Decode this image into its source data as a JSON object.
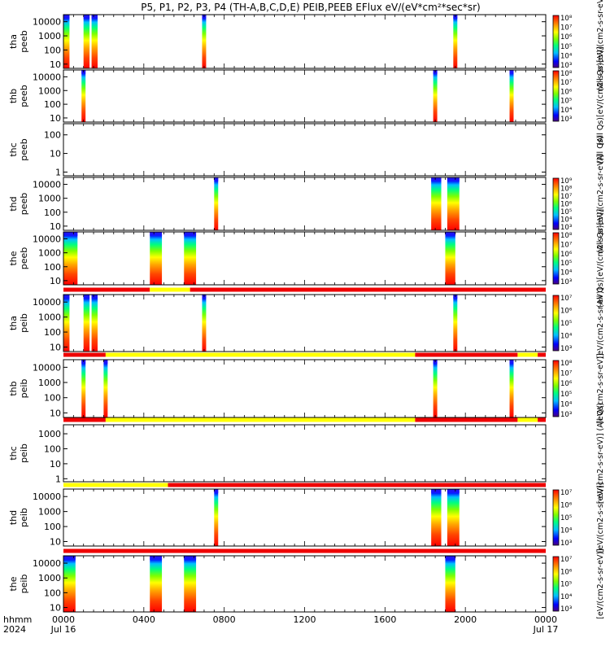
{
  "title": "P5, P1, P2, P3, P4 (TH-A,B,C,D,E) PEIB,PEEB EFlux eV/(eV*cm²*sec*sr)",
  "colors": {
    "flag_red": "#ee0000",
    "flag_yellow": "#ffff00",
    "spectrogram": [
      "#4b0082",
      "#0000ff",
      "#00bfff",
      "#00ff7f",
      "#7fff00",
      "#ffff00",
      "#ffa500",
      "#ff4500",
      "#ff0000"
    ]
  },
  "x_axis": {
    "row_label_1": "hhmm",
    "row_label_2": "2024",
    "ticks": [
      {
        "t": 0,
        "label": "0000",
        "date": "Jul 16"
      },
      {
        "t": 4,
        "label": "0400",
        "date": ""
      },
      {
        "t": 8,
        "label": "0800",
        "date": ""
      },
      {
        "t": 12,
        "label": "1200",
        "date": ""
      },
      {
        "t": 16,
        "label": "1600",
        "date": ""
      },
      {
        "t": 20,
        "label": "2000",
        "date": ""
      },
      {
        "t": 24,
        "label": "0000",
        "date": "Jul 17"
      }
    ],
    "range_hours": [
      0,
      24
    ]
  },
  "chart_data": {
    "type": "heatmap",
    "x_units": "hours since 2024-07-16 00:00",
    "panels": [
      {
        "id": "tha-peeb",
        "ylabel": [
          "tha",
          "peeb"
        ],
        "yticks": [
          "10000",
          "1000",
          "100",
          "10"
        ],
        "ylog": [
          0.7,
          4.5
        ],
        "colorbar": {
          "ticks": [
            "10⁸",
            "10⁷",
            "10⁶",
            "10⁵",
            "10⁴",
            "10³"
          ],
          "label": "(All Qs)[eV/(cm2-s-sr-eV)]"
        },
        "segments": [
          {
            "t0": 0.0,
            "t1": 0.3
          },
          {
            "t0": 1.0,
            "t1": 1.3
          },
          {
            "t0": 1.4,
            "t1": 1.7
          },
          {
            "t0": 6.9,
            "t1": 7.1
          },
          {
            "t0": 19.4,
            "t1": 19.6
          }
        ]
      },
      {
        "id": "thb-peeb",
        "ylabel": [
          "thb",
          "peeb"
        ],
        "yticks": [
          "10000",
          "1000",
          "100",
          "10"
        ],
        "ylog": [
          0.7,
          4.5
        ],
        "colorbar": {
          "ticks": [
            "10⁸",
            "10⁷",
            "10⁶",
            "10⁵",
            "10⁴",
            "10³"
          ],
          "label": "(All Qs)[eV/(cm2-s-sr-eV)]"
        },
        "segments": [
          {
            "t0": 0.9,
            "t1": 1.1
          },
          {
            "t0": 18.4,
            "t1": 18.6
          },
          {
            "t0": 22.2,
            "t1": 22.4
          }
        ]
      },
      {
        "id": "thc-peeb",
        "ylabel": [
          "thc",
          "peeb"
        ],
        "yticks": [
          "100",
          "10",
          "1"
        ],
        "ylog": [
          -0.2,
          2.6
        ],
        "colorbar": null,
        "segments": [],
        "side_label": "(All Qs)"
      },
      {
        "id": "thd-peeb",
        "ylabel": [
          "thd",
          "peeb"
        ],
        "yticks": [
          "10000",
          "1000",
          "100",
          "10"
        ],
        "ylog": [
          0.7,
          4.5
        ],
        "colorbar": {
          "ticks": [
            "10⁹",
            "10⁸",
            "10⁷",
            "10⁶",
            "10⁵",
            "10⁴",
            "10³"
          ],
          "label": "(All Qs)[eV/(cm2-s-sr-eV)]"
        },
        "segments": [
          {
            "t0": 7.5,
            "t1": 7.7
          },
          {
            "t0": 18.3,
            "t1": 18.8
          },
          {
            "t0": 19.1,
            "t1": 19.7
          }
        ]
      },
      {
        "id": "the-peeb",
        "ylabel": [
          "the",
          "peeb"
        ],
        "yticks": [
          "10000",
          "1000",
          "100",
          "10"
        ],
        "ylog": [
          0.7,
          4.5
        ],
        "colorbar": {
          "ticks": [
            "10⁸",
            "10⁷",
            "10⁶",
            "10⁵",
            "10⁴",
            "10³"
          ],
          "label": "(All Qs)[eV/(cm2-s-sr-eV)]"
        },
        "segments": [
          {
            "t0": 0.0,
            "t1": 0.7
          },
          {
            "t0": 4.3,
            "t1": 4.9
          },
          {
            "t0": 6.0,
            "t1": 6.6
          },
          {
            "t0": 19.0,
            "t1": 19.5
          }
        ]
      },
      {
        "id": "tha-peib",
        "ylabel": [
          "tha",
          "peib"
        ],
        "yticks": [
          "10000",
          "1000",
          "100",
          "10"
        ],
        "ylog": [
          0.7,
          4.5
        ],
        "flag": [
          {
            "t0": 0,
            "t1": 4.3,
            "c": "red"
          },
          {
            "t0": 4.3,
            "t1": 6.3,
            "c": "yellow"
          },
          {
            "t0": 6.3,
            "t1": 24,
            "c": "red"
          }
        ],
        "colorbar": {
          "ticks": [
            "10⁷",
            "10⁶",
            "10⁵",
            "10⁴",
            "10³"
          ],
          "label": "[eV/(cm2-s-sr-eV)]"
        },
        "segments": [
          {
            "t0": 0.0,
            "t1": 0.3
          },
          {
            "t0": 1.0,
            "t1": 1.3
          },
          {
            "t0": 1.4,
            "t1": 1.7
          },
          {
            "t0": 6.9,
            "t1": 7.1
          },
          {
            "t0": 19.4,
            "t1": 19.6
          }
        ]
      },
      {
        "id": "thb-peib",
        "ylabel": [
          "thb",
          "peib"
        ],
        "yticks": [
          "10000",
          "1000",
          "100",
          "10"
        ],
        "ylog": [
          0.7,
          4.5
        ],
        "flag": [
          {
            "t0": 0,
            "t1": 2.1,
            "c": "red"
          },
          {
            "t0": 2.1,
            "t1": 17.5,
            "c": "yellow"
          },
          {
            "t0": 17.5,
            "t1": 22.6,
            "c": "red"
          },
          {
            "t0": 22.6,
            "t1": 23.6,
            "c": "yellow"
          },
          {
            "t0": 23.6,
            "t1": 24,
            "c": "red"
          }
        ],
        "colorbar": {
          "ticks": [
            "10⁸",
            "10⁷",
            "10⁶",
            "10⁵",
            "10⁴",
            "10³"
          ],
          "label": "[eV/(cm2-s-sr-eV)]"
        },
        "segments": [
          {
            "t0": 0.9,
            "t1": 1.1
          },
          {
            "t0": 2.0,
            "t1": 2.2
          },
          {
            "t0": 18.4,
            "t1": 18.6
          },
          {
            "t0": 22.2,
            "t1": 22.4
          }
        ]
      },
      {
        "id": "thc-peib",
        "ylabel": [
          "thc",
          "peib"
        ],
        "yticks": [
          "1000",
          "100",
          "10",
          "1"
        ],
        "ylog": [
          -0.2,
          3.6
        ],
        "flag": [
          {
            "t0": 0,
            "t1": 2.1,
            "c": "red"
          },
          {
            "t0": 2.1,
            "t1": 17.5,
            "c": "yellow"
          },
          {
            "t0": 17.5,
            "t1": 22.6,
            "c": "red"
          },
          {
            "t0": 22.6,
            "t1": 23.6,
            "c": "yellow"
          },
          {
            "t0": 23.6,
            "t1": 24,
            "c": "red"
          }
        ],
        "colorbar": null,
        "segments": [],
        "side_label": "[eV/(cm2-s-sr-eV)] (All Qs)"
      },
      {
        "id": "thd-peib",
        "ylabel": [
          "thd",
          "peib"
        ],
        "yticks": [
          "10000",
          "1000",
          "100",
          "10"
        ],
        "ylog": [
          0.7,
          4.5
        ],
        "flag": [
          {
            "t0": 0,
            "t1": 5.2,
            "c": "yellow"
          },
          {
            "t0": 5.2,
            "t1": 24,
            "c": "red"
          }
        ],
        "colorbar": {
          "ticks": [
            "10⁷",
            "10⁶",
            "10⁵",
            "10⁴",
            "10³"
          ],
          "label": "[eV/(cm2-s-sr-eV)]"
        },
        "segments": [
          {
            "t0": 7.5,
            "t1": 7.7
          },
          {
            "t0": 18.3,
            "t1": 18.8
          },
          {
            "t0": 19.1,
            "t1": 19.7
          }
        ]
      },
      {
        "id": "the-peib",
        "ylabel": [
          "the",
          "peib"
        ],
        "yticks": [
          "10000",
          "1000",
          "100",
          "10"
        ],
        "ylog": [
          0.7,
          4.5
        ],
        "flag": [
          {
            "t0": 0,
            "t1": 24,
            "c": "red"
          }
        ],
        "colorbar": {
          "ticks": [
            "10⁷",
            "10⁶",
            "10⁵",
            "10⁴",
            "10³"
          ],
          "label": "[eV/(cm2-s-sr-eV)]"
        },
        "segments": [
          {
            "t0": 0.0,
            "t1": 0.6
          },
          {
            "t0": 4.3,
            "t1": 4.9
          },
          {
            "t0": 6.0,
            "t1": 6.6
          },
          {
            "t0": 19.0,
            "t1": 19.5
          }
        ]
      }
    ]
  }
}
